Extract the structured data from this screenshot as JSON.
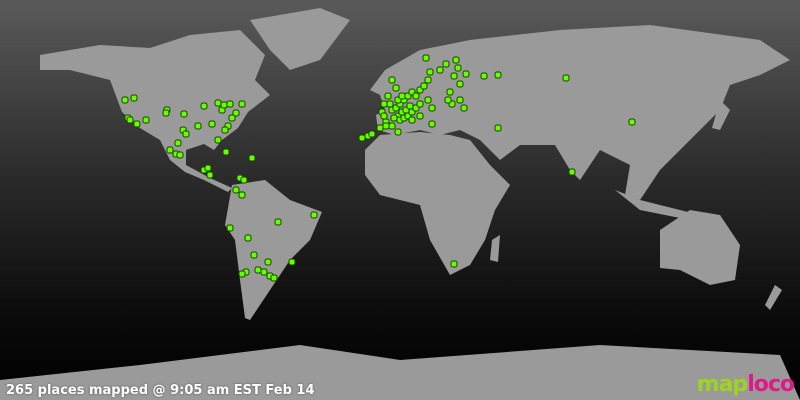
{
  "status_text": "265 places mapped @ 9:05 am EST Feb 14",
  "logo": {
    "part1": "map",
    "part2": "loco"
  },
  "colors": {
    "land": "#9a9a9a",
    "marker": "#66ff00",
    "marker_outline": "#1a4000",
    "logo_map": "#9fd320",
    "logo_loco": "#e0198a"
  },
  "projection": "equirectangular",
  "markers_lonlat": [
    [
      -123.75,
      52.5
    ],
    [
      -119.7,
      53.5
    ],
    [
      -122.4,
      43.5
    ],
    [
      -121.5,
      42.5
    ],
    [
      -118.4,
      40.5
    ],
    [
      -114.3,
      42.5
    ],
    [
      -104.9,
      47.5
    ],
    [
      -105.3,
      46
    ],
    [
      -97.2,
      45.5
    ],
    [
      -97.6,
      37.5
    ],
    [
      -96.3,
      35.5
    ],
    [
      -88.2,
      49.5
    ],
    [
      -81.9,
      51
    ],
    [
      -80.1,
      47.5
    ],
    [
      -79.2,
      50
    ],
    [
      -76.5,
      50.5
    ],
    [
      -71.1,
      50.5
    ],
    [
      -73.8,
      46
    ],
    [
      -75.6,
      43.5
    ],
    [
      -77.4,
      39.5
    ],
    [
      -78.75,
      37.5
    ],
    [
      -84.6,
      40.5
    ],
    [
      -90.9,
      39.5
    ],
    [
      -81.9,
      32.5
    ],
    [
      -78.3,
      26.5
    ],
    [
      -66.6,
      23.5
    ],
    [
      -103.5,
      27.5
    ],
    [
      -100.8,
      25.5
    ],
    [
      -99,
      25
    ],
    [
      -99.9,
      31
    ],
    [
      -88.2,
      17.5
    ],
    [
      -86.4,
      18.5
    ],
    [
      -85.5,
      15
    ],
    [
      -72,
      13.5
    ],
    [
      -70.2,
      12.5
    ],
    [
      -73.8,
      7.5
    ],
    [
      -71.1,
      5
    ],
    [
      -76.5,
      -11.5
    ],
    [
      -68.4,
      -16.5
    ],
    [
      -54.9,
      -8.5
    ],
    [
      -38.7,
      -5
    ],
    [
      -65.7,
      -25
    ],
    [
      -59.4,
      -28.5
    ],
    [
      -63.9,
      -32.5
    ],
    [
      -61.2,
      -33.5
    ],
    [
      -58.5,
      -35.5
    ],
    [
      -56.7,
      -36.5
    ],
    [
      -69.3,
      -33.5
    ],
    [
      -71.1,
      -34.5
    ],
    [
      -48.6,
      -28.5
    ],
    [
      -17.1,
      33.5
    ],
    [
      -14.4,
      34.5
    ],
    [
      -12.6,
      35.5
    ],
    [
      -9,
      38.5
    ],
    [
      -6.3,
      41.5
    ],
    [
      -8.1,
      46.5
    ],
    [
      -7.2,
      50.5
    ],
    [
      -5.4,
      54.5
    ],
    [
      -3.6,
      62.5
    ],
    [
      -1.8,
      58.5
    ],
    [
      -3.6,
      47.5
    ],
    [
      -1.8,
      48.5
    ],
    [
      0,
      50.5
    ],
    [
      1.8,
      52.5
    ],
    [
      3.6,
      54.5
    ],
    [
      5.4,
      56.5
    ],
    [
      -0.9,
      44.5
    ],
    [
      0.9,
      46.5
    ],
    [
      2.7,
      47.5
    ],
    [
      4.5,
      49.5
    ],
    [
      -2.7,
      43.5
    ],
    [
      0,
      42.5
    ],
    [
      1.8,
      43.5
    ],
    [
      3.6,
      44.5
    ],
    [
      5.4,
      46.5
    ],
    [
      7.2,
      48.5
    ],
    [
      9,
      50.5
    ],
    [
      -4.5,
      50.5
    ],
    [
      -0.9,
      52.5
    ],
    [
      0.9,
      54.5
    ],
    [
      7.2,
      54.5
    ],
    [
      9,
      57.5
    ],
    [
      10.8,
      59.5
    ],
    [
      12.6,
      62.5
    ],
    [
      13.5,
      66.5
    ],
    [
      11.7,
      73.5
    ],
    [
      18,
      67.5
    ],
    [
      20.7,
      70.5
    ],
    [
      25.2,
      72.5
    ],
    [
      26.1,
      68.5
    ],
    [
      24.3,
      64.5
    ],
    [
      27,
      60.5
    ],
    [
      29.7,
      65.5
    ],
    [
      22.5,
      56.5
    ],
    [
      27,
      52.5
    ],
    [
      23.4,
      50.5
    ],
    [
      21.6,
      52.5
    ],
    [
      12.6,
      52.5
    ],
    [
      14.4,
      48.5
    ],
    [
      9,
      44.5
    ],
    [
      14.4,
      40.5
    ],
    [
      5.4,
      42.5
    ],
    [
      -0.9,
      36.5
    ],
    [
      -6.3,
      39.5
    ],
    [
      -3.6,
      39.5
    ],
    [
      -7.2,
      44.5
    ],
    [
      44.1,
      65
    ],
    [
      37.8,
      64.5
    ],
    [
      28.8,
      48.5
    ],
    [
      44.1,
      38.5
    ],
    [
      74.7,
      63.5
    ],
    [
      104.4,
      41.5
    ],
    [
      77.4,
      16.5
    ],
    [
      24.3,
      -29.5
    ]
  ]
}
